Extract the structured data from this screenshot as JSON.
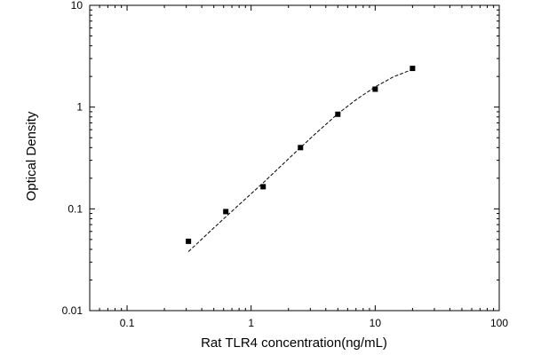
{
  "chart_data": {
    "type": "scatter",
    "title": "",
    "xlabel": "Rat TLR4 concentration(ng/mL)",
    "ylabel": "Optical Density",
    "xscale": "log",
    "yscale": "log",
    "xlim": [
      0.05,
      100
    ],
    "ylim": [
      0.01,
      10
    ],
    "x_ticks": [
      {
        "value": 0.1,
        "label": "0.1"
      },
      {
        "value": 1,
        "label": "1"
      },
      {
        "value": 10,
        "label": "10"
      },
      {
        "value": 100,
        "label": "100"
      }
    ],
    "y_ticks": [
      {
        "value": 0.01,
        "label": "0.01"
      },
      {
        "value": 0.1,
        "label": "0.1"
      },
      {
        "value": 1,
        "label": "1"
      },
      {
        "value": 10,
        "label": "10"
      }
    ],
    "grid": false,
    "series": [
      {
        "marker": "square",
        "color": "#000000",
        "x": [
          0.3125,
          0.625,
          1.25,
          2.5,
          5,
          10,
          20
        ],
        "y": [
          0.048,
          0.094,
          0.165,
          0.4,
          0.85,
          1.5,
          2.4
        ]
      }
    ],
    "fit_curve": {
      "style": "dashed",
      "color": "#000000",
      "x": [
        0.3125,
        0.5,
        0.8,
        1.25,
        2.0,
        3.2,
        5,
        7,
        10,
        14,
        20
      ],
      "y": [
        0.038,
        0.065,
        0.11,
        0.18,
        0.31,
        0.53,
        0.86,
        1.18,
        1.58,
        1.98,
        2.35
      ]
    }
  }
}
